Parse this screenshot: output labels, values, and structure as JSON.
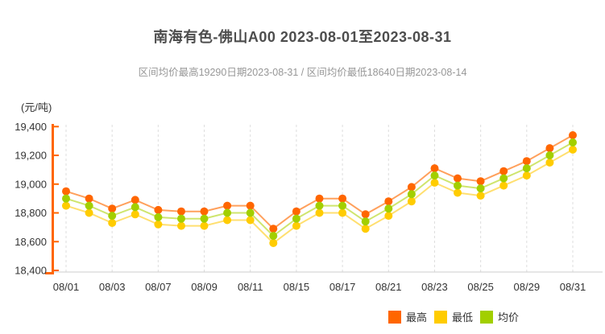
{
  "header": {
    "title": "南海有色-佛山A00 2023-08-01至2023-08-31",
    "subtitle": "区间均价最高19290日期2023-08-31 / 区间均价最低18640日期2023-08-14"
  },
  "y_axis": {
    "unit_label": "(元/吨)",
    "ticks": [
      "19,400",
      "19,200",
      "19,000",
      "18,800",
      "18,600",
      "18,400"
    ],
    "max": 19400,
    "min": 18400,
    "step": 200
  },
  "x_axis": {
    "labels": [
      "08/01",
      "08/03",
      "08/07",
      "08/09",
      "08/11",
      "08/15",
      "08/17",
      "08/21",
      "08/23",
      "08/25",
      "08/29",
      "08/31"
    ]
  },
  "legend": [
    {
      "label": "最高",
      "color": "#FF6600"
    },
    {
      "label": "最低",
      "color": "#FFCC00"
    },
    {
      "label": "均价",
      "color": "#A2CF00"
    }
  ],
  "colors": {
    "y_axis_line": "#FF6600",
    "x_axis_line": "#CCCCCC",
    "gridline": "#DDDDDD",
    "axis_text": "#333333"
  },
  "chart_data": {
    "type": "line",
    "title": "南海有色-佛山A00 2023-08-01至2023-08-31",
    "ylabel": "(元/吨)",
    "ylim": [
      18400,
      19400
    ],
    "grid": "vertical-dashed",
    "legend_position": "bottom-right",
    "x": [
      "08/01",
      "08/02",
      "08/03",
      "08/04",
      "08/07",
      "08/08",
      "08/09",
      "08/10",
      "08/11",
      "08/14",
      "08/15",
      "08/16",
      "08/17",
      "08/18",
      "08/21",
      "08/22",
      "08/23",
      "08/24",
      "08/25",
      "08/28",
      "08/29",
      "08/30",
      "08/31"
    ],
    "x_tick_labels": [
      "08/01",
      "08/03",
      "08/07",
      "08/09",
      "08/11",
      "08/15",
      "08/17",
      "08/21",
      "08/23",
      "08/25",
      "08/29",
      "08/31"
    ],
    "series": [
      {
        "key": "high",
        "name": "最高",
        "color": "#FF6600",
        "line_color": "#FFA05C",
        "values": [
          18950,
          18900,
          18830,
          18890,
          18820,
          18810,
          18810,
          18850,
          18850,
          18690,
          18810,
          18900,
          18900,
          18790,
          18880,
          18980,
          19110,
          19040,
          19020,
          19090,
          19160,
          19250,
          19340
        ]
      },
      {
        "key": "low",
        "name": "最低",
        "color": "#FFCC00",
        "line_color": "#FFDF70",
        "values": [
          18850,
          18800,
          18730,
          18790,
          18720,
          18710,
          18710,
          18750,
          18750,
          18590,
          18710,
          18800,
          18800,
          18690,
          18780,
          18880,
          19010,
          18940,
          18920,
          18990,
          19060,
          19150,
          19240
        ]
      },
      {
        "key": "avg",
        "name": "均价",
        "color": "#A2CF00",
        "line_color": "#CFE56E",
        "values": [
          18900,
          18850,
          18780,
          18840,
          18770,
          18760,
          18760,
          18800,
          18800,
          18640,
          18760,
          18850,
          18850,
          18740,
          18830,
          18930,
          19060,
          18990,
          18970,
          19040,
          19110,
          19200,
          19290
        ]
      }
    ],
    "annotations": {
      "range_avg_max": {
        "value": 19290,
        "date": "2023-08-31"
      },
      "range_avg_min": {
        "value": 18640,
        "date": "2023-08-14"
      }
    }
  }
}
